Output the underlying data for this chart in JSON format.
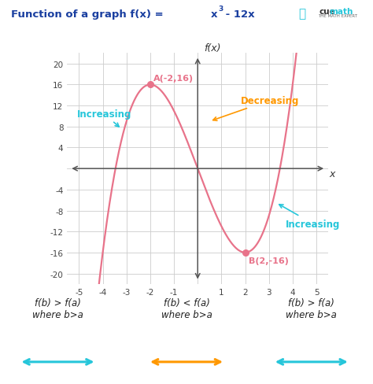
{
  "title_color": "#1a3fa0",
  "bg_color": "#ffffff",
  "curve_color": "#e8738a",
  "xlim": [
    -5.5,
    5.5
  ],
  "ylim": [
    -22,
    22
  ],
  "xticks": [
    -5,
    -4,
    -3,
    -2,
    -1,
    0,
    1,
    2,
    3,
    4,
    5
  ],
  "yticks": [
    -20,
    -16,
    -12,
    -8,
    -4,
    0,
    4,
    8,
    12,
    16,
    20
  ],
  "point_A": [
    -2,
    16
  ],
  "point_B": [
    2,
    -16
  ],
  "point_color": "#e8738a",
  "label_A": "A(-2,16)",
  "label_B": "B(2,-16)",
  "increasing_color": "#26c6da",
  "decreasing_color": "#ff9800",
  "increasing_label": "Increasing",
  "decreasing_label": "Decreasing",
  "axis_label_x": "x",
  "axis_label_fx": "f(x)",
  "bottom_labels_line1": [
    "f(b) > f(a)",
    "f(b) < f(a)",
    "f(b) > f(a)"
  ],
  "bottom_labels_line2": [
    "where b>a",
    "where b>a",
    "where b>a"
  ],
  "bottom_arrow_colors": [
    "#26c6da",
    "#ff9800",
    "#26c6da"
  ],
  "cuemath_blue": "#26c6da",
  "cuemath_dark": "#333333"
}
